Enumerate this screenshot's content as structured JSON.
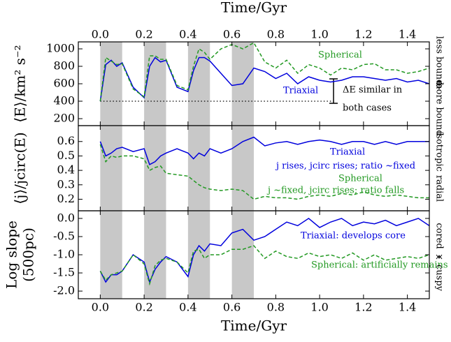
{
  "chart_data": [
    {
      "type": "line",
      "x_label": "Time/Gyr",
      "y_label": "⟨E⟩/km² s⁻²",
      "x": [
        0,
        0.025,
        0.05,
        0.075,
        0.1,
        0.15,
        0.2,
        0.225,
        0.25,
        0.275,
        0.3,
        0.35,
        0.4,
        0.425,
        0.45,
        0.475,
        0.5,
        0.55,
        0.6,
        0.65,
        0.7,
        0.75,
        0.8,
        0.85,
        0.9,
        0.95,
        1.0,
        1.05,
        1.1,
        1.15,
        1.2,
        1.25,
        1.3,
        1.35,
        1.4,
        1.45,
        1.5
      ],
      "series": [
        {
          "name": "Triaxial",
          "color": "#0000dd",
          "linestyle": "solid",
          "values": [
            400,
            820,
            870,
            800,
            840,
            560,
            440,
            800,
            900,
            850,
            870,
            560,
            510,
            750,
            900,
            900,
            860,
            720,
            580,
            600,
            780,
            740,
            660,
            720,
            600,
            680,
            640,
            620,
            640,
            680,
            680,
            660,
            640,
            660,
            620,
            640,
            600
          ]
        },
        {
          "name": "Spherical",
          "color": "#229922",
          "linestyle": "dashed",
          "values": [
            400,
            900,
            860,
            820,
            830,
            540,
            450,
            920,
            920,
            880,
            880,
            580,
            530,
            800,
            1000,
            960,
            880,
            1000,
            1050,
            1000,
            1070,
            850,
            780,
            870,
            720,
            820,
            780,
            700,
            780,
            760,
            820,
            830,
            760,
            760,
            720,
            740,
            780
          ]
        }
      ],
      "reference_line": 400,
      "annotations": [
        "ΔE similar in",
        "both cases"
      ],
      "right_labels": [
        "less bound",
        "more bound"
      ],
      "shaded_regions": [
        [
          0,
          0.1
        ],
        [
          0.2,
          0.3
        ],
        [
          0.4,
          0.5
        ],
        [
          0.6,
          0.7
        ]
      ],
      "shade_color": "#c8c8c8",
      "xlim": [
        -0.1,
        1.5
      ],
      "xticks": [
        {
          "value": 0,
          "label": "0.0"
        },
        0.2,
        0.4,
        0.6,
        0.8,
        {
          "value": 1,
          "label": "1.0"
        },
        1.2,
        1.4
      ],
      "ylim": [
        120,
        1080
      ],
      "yticks": [
        200,
        400,
        600,
        800,
        1000
      ]
    },
    {
      "type": "line",
      "y_label": "⟨j⟩/jcirc(E)",
      "x": [
        0,
        0.025,
        0.05,
        0.075,
        0.1,
        0.15,
        0.2,
        0.225,
        0.25,
        0.275,
        0.3,
        0.35,
        0.4,
        0.425,
        0.45,
        0.475,
        0.5,
        0.55,
        0.6,
        0.65,
        0.7,
        0.75,
        0.8,
        0.85,
        0.9,
        0.95,
        1.0,
        1.05,
        1.1,
        1.15,
        1.2,
        1.25,
        1.3,
        1.35,
        1.4,
        1.45,
        1.5
      ],
      "series": [
        {
          "name": "Triaxial",
          "color": "#0000dd",
          "linestyle": "solid",
          "values": [
            0.6,
            0.5,
            0.52,
            0.55,
            0.56,
            0.53,
            0.55,
            0.44,
            0.46,
            0.5,
            0.52,
            0.55,
            0.52,
            0.48,
            0.52,
            0.5,
            0.55,
            0.52,
            0.55,
            0.6,
            0.63,
            0.57,
            0.59,
            0.6,
            0.58,
            0.6,
            0.61,
            0.6,
            0.58,
            0.6,
            0.6,
            0.58,
            0.6,
            0.58,
            0.6,
            0.6,
            0.6
          ]
        },
        {
          "name": "Spherical",
          "color": "#229922",
          "linestyle": "dashed",
          "values": [
            0.58,
            0.46,
            0.5,
            0.49,
            0.5,
            0.5,
            0.48,
            0.4,
            0.42,
            0.43,
            0.38,
            0.37,
            0.36,
            0.33,
            0.3,
            0.28,
            0.27,
            0.26,
            0.27,
            0.26,
            0.2,
            0.22,
            0.21,
            0.21,
            0.2,
            0.22,
            0.23,
            0.22,
            0.24,
            0.23,
            0.25,
            0.23,
            0.22,
            0.23,
            0.22,
            0.21,
            0.21
          ]
        }
      ],
      "annotations": [
        "j rises, jcirc rises; ratio ~fixed",
        "j ~fixed, jcirc rises; ratio falls"
      ],
      "right_labels": [
        "isotropic",
        "radial"
      ],
      "shaded_regions": [
        [
          0,
          0.1
        ],
        [
          0.2,
          0.3
        ],
        [
          0.4,
          0.5
        ],
        [
          0.6,
          0.7
        ]
      ],
      "shade_color": "#c8c8c8",
      "xlim": [
        -0.1,
        1.5
      ],
      "xticks": [
        {
          "value": 0,
          "label": "0.0"
        },
        0.2,
        0.4,
        0.6,
        0.8,
        {
          "value": 1,
          "label": "1.0"
        },
        1.2,
        1.4
      ],
      "ylim": [
        0.12,
        0.71
      ],
      "yticks": [
        0.2,
        0.3,
        0.4,
        0.5,
        0.6
      ]
    },
    {
      "type": "line",
      "x_label": "Time/Gyr",
      "y_label": [
        "Log slope",
        "(500pc)"
      ],
      "x": [
        0,
        0.025,
        0.05,
        0.075,
        0.1,
        0.15,
        0.2,
        0.225,
        0.25,
        0.275,
        0.3,
        0.35,
        0.4,
        0.425,
        0.45,
        0.475,
        0.5,
        0.55,
        0.6,
        0.65,
        0.7,
        0.75,
        0.8,
        0.85,
        0.9,
        0.95,
        1.0,
        1.05,
        1.1,
        1.15,
        1.2,
        1.25,
        1.3,
        1.35,
        1.4,
        1.45,
        1.5
      ],
      "series": [
        {
          "name": "Triaxial: develops core",
          "color": "#0000dd",
          "linestyle": "solid",
          "values": [
            -1.45,
            -1.75,
            -1.55,
            -1.55,
            -1.45,
            -1.0,
            -1.2,
            -1.75,
            -1.4,
            -1.2,
            -1.05,
            -1.2,
            -1.6,
            -1.0,
            -0.75,
            -0.9,
            -0.7,
            -0.75,
            -0.4,
            -0.3,
            -0.6,
            -0.5,
            -0.3,
            -0.1,
            -0.2,
            0.0,
            -0.25,
            -0.1,
            0.0,
            -0.2,
            -0.1,
            -0.15,
            -0.05,
            -0.2,
            -0.1,
            0.0,
            -0.2
          ]
        },
        {
          "name": "Spherical: artificially remains cusped",
          "color": "#229922",
          "linestyle": "dashed",
          "values": [
            -1.45,
            -1.7,
            -1.55,
            -1.5,
            -1.45,
            -1.0,
            -1.25,
            -1.8,
            -1.3,
            -1.15,
            -1.1,
            -1.2,
            -1.5,
            -0.9,
            -0.85,
            -1.1,
            -1.0,
            -1.0,
            -0.85,
            -0.85,
            -0.75,
            -1.1,
            -0.9,
            -1.05,
            -1.1,
            -0.95,
            -1.05,
            -1.0,
            -1.1,
            -0.95,
            -1.15,
            -1.0,
            -1.15,
            -1.1,
            -1.05,
            -1.1,
            -1.0
          ]
        }
      ],
      "right_labels": [
        "cored",
        "cuspy"
      ],
      "shaded_regions": [
        [
          0,
          0.1
        ],
        [
          0.2,
          0.3
        ],
        [
          0.4,
          0.5
        ],
        [
          0.6,
          0.7
        ]
      ],
      "shade_color": "#c8c8c8",
      "xlim": [
        -0.1,
        1.5
      ],
      "xticks": [
        {
          "value": 0,
          "label": "0.0"
        },
        0.2,
        0.4,
        0.6,
        0.8,
        {
          "value": 1,
          "label": "1.0"
        },
        1.2,
        1.4
      ],
      "ylim": [
        -2.21,
        0.21
      ],
      "yticks": [
        {
          "value": 0,
          "label": "0.0"
        },
        -0.5,
        {
          "value": -1,
          "label": "-1.0"
        },
        -1.5,
        {
          "value": -2,
          "label": "-2.0"
        }
      ]
    }
  ]
}
